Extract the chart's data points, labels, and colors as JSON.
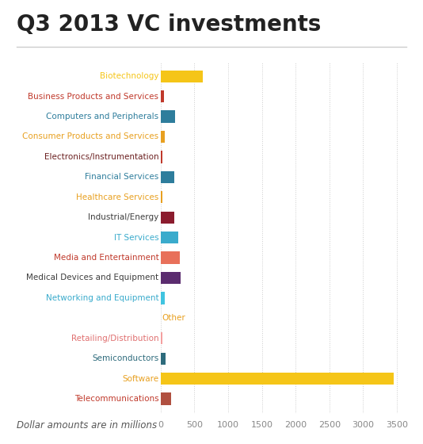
{
  "title": "Q3 2013 VC investments",
  "subtitle": "Dollar amounts are in millions",
  "categories": [
    "Biotechnology",
    "Business Products and Services",
    "Computers and Peripherals",
    "Consumer Products and Services",
    "Electronics/Instrumentation",
    "Financial Services",
    "Healthcare Services",
    "Industrial/Energy",
    "IT Services",
    "Media and Entertainment",
    "Medical Devices and Equipment",
    "Networking and Equipment",
    "Other",
    "Retailing/Distribution",
    "Semiconductors",
    "Software",
    "Telecommunications"
  ],
  "values": [
    620,
    45,
    215,
    65,
    25,
    200,
    30,
    195,
    260,
    285,
    290,
    55,
    0,
    20,
    75,
    3450,
    155
  ],
  "bar_colors": [
    "#f5c518",
    "#c0392b",
    "#2e7d9c",
    "#e8a020",
    "#c0392b",
    "#2e7d9c",
    "#e8a020",
    "#8b1c2e",
    "#3aabcc",
    "#e8705a",
    "#5b2c6f",
    "#40c4e0",
    "#e8a020",
    "#f4a0a0",
    "#2e6b7c",
    "#f5c518",
    "#b05040"
  ],
  "label_colors": [
    "#f5c518",
    "#c0392b",
    "#2e7d9c",
    "#e8a020",
    "#6b2020",
    "#2e7d9c",
    "#e8a020",
    "#3d3d3d",
    "#3aabcc",
    "#c0392b",
    "#3d3d3d",
    "#3aabcc",
    "#e8a020",
    "#e07070",
    "#2e6b7c",
    "#e8a020",
    "#c0392b"
  ],
  "other_is_label_only": true,
  "xlim": [
    0,
    3700
  ],
  "xticks": [
    0,
    500,
    1000,
    1500,
    2000,
    2500,
    3000,
    3500
  ],
  "background_color": "#ffffff",
  "grid_color": "#cccccc",
  "title_color": "#222222",
  "bar_height": 0.6
}
